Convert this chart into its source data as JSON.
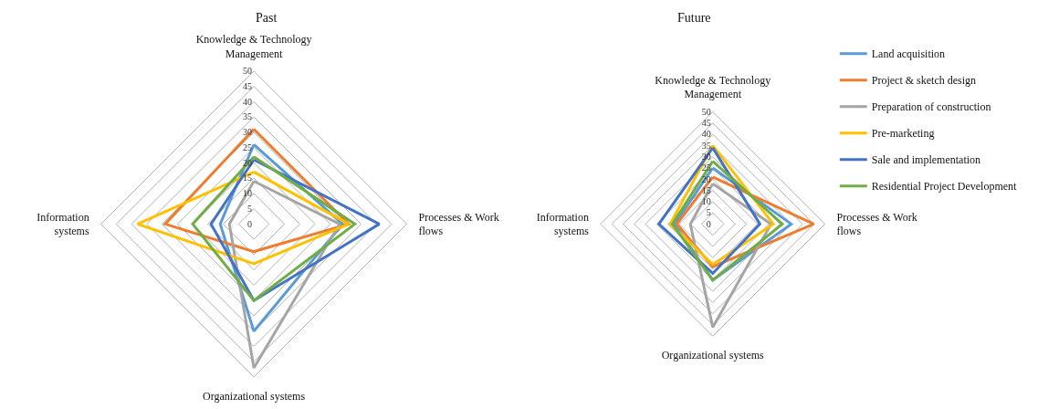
{
  "chart_data": [
    {
      "type": "radar",
      "title": "Past",
      "categories": [
        "Knowledge & Technology Management",
        "Processes & Work flows",
        "Organizational systems",
        "Information systems"
      ],
      "ylim": [
        0,
        50
      ],
      "yticks": [
        0,
        5,
        10,
        15,
        20,
        25,
        30,
        35,
        40,
        45,
        50
      ],
      "grid": true,
      "legend": false,
      "marker": "none",
      "line_style": "solid",
      "series": [
        {
          "color": "#5b9bd5",
          "values": [
            26,
            29,
            35,
            11
          ]
        },
        {
          "color": "#ed7d31",
          "values": [
            31,
            31,
            9,
            29
          ]
        },
        {
          "color": "#a5a5a5",
          "values": [
            14,
            28,
            47,
            8
          ]
        },
        {
          "color": "#ffc000",
          "values": [
            17,
            31,
            13,
            38
          ]
        },
        {
          "color": "#4472c4",
          "values": [
            21,
            41,
            25,
            14
          ]
        },
        {
          "color": "#70ad47",
          "values": [
            22,
            33,
            25,
            20
          ]
        }
      ]
    },
    {
      "type": "radar",
      "title": "Future",
      "categories": [
        "Knowledge & Technology Management",
        "Processes & Work flows",
        "Organizational systems",
        "Information systems"
      ],
      "ylim": [
        0,
        50
      ],
      "yticks": [
        0,
        5,
        10,
        15,
        20,
        25,
        30,
        35,
        40,
        45,
        50
      ],
      "grid": true,
      "legend": "right",
      "marker": "none",
      "line_style": "solid",
      "series": [
        {
          "name": "Land acquisition",
          "color": "#5b9bd5",
          "values": [
            25,
            35,
            25,
            17
          ]
        },
        {
          "name": "Project & sketch design",
          "color": "#ed7d31",
          "values": [
            21,
            45,
            19,
            16
          ]
        },
        {
          "name": "Preparation of construction",
          "color": "#a5a5a5",
          "values": [
            18,
            26,
            46,
            10
          ]
        },
        {
          "name": "Pre-marketing",
          "color": "#ffc000",
          "values": [
            35,
            27,
            18,
            19
          ]
        },
        {
          "name": "Sale and implementation",
          "color": "#4472c4",
          "values": [
            34,
            21,
            22,
            24
          ]
        },
        {
          "name": "Residential Project Development",
          "color": "#70ad47",
          "values": [
            28,
            31,
            25,
            18
          ]
        }
      ]
    }
  ]
}
